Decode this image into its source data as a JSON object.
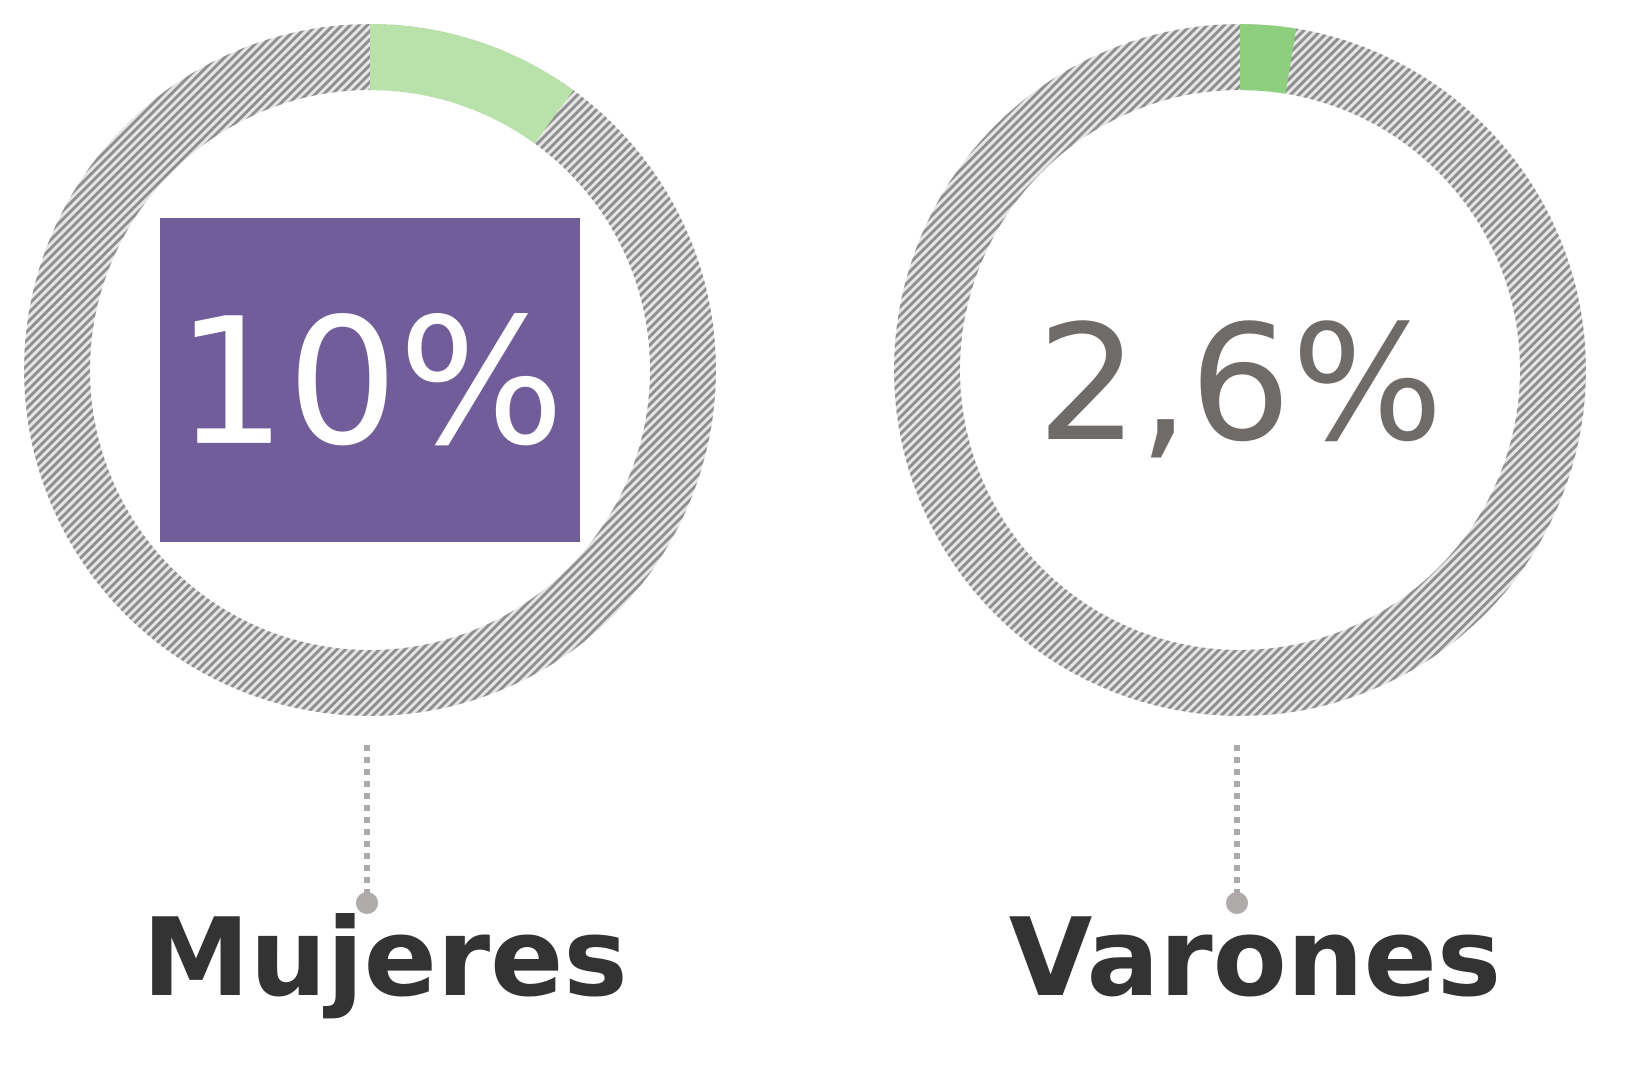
{
  "chart_data": {
    "type": "donut",
    "categories": [
      "Mujeres",
      "Varones"
    ],
    "values": [
      10,
      2.6
    ],
    "value_labels": [
      "10%",
      "2,6%"
    ],
    "colors": [
      "#b8e2aa",
      "#8dcf7f"
    ],
    "value_label_colors": [
      "#ffffff",
      "#6f6b69"
    ],
    "value_label_backgrounds": [
      "#715d99",
      null
    ],
    "track_color": "#9a9a9a",
    "ylim": [
      0,
      100
    ]
  }
}
